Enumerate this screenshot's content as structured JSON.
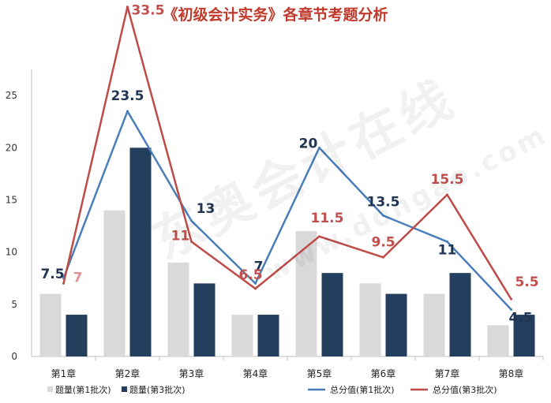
{
  "chart_data": {
    "type": "bar",
    "title": "《初级会计实务》各章节考题分析",
    "categories": [
      "第1章",
      "第2章",
      "第3章",
      "第4章",
      "第5章",
      "第6章",
      "第7章",
      "第8章"
    ],
    "ylim": [
      0,
      30
    ],
    "yticks": [
      0,
      5,
      10,
      15,
      20,
      25
    ],
    "grid": false,
    "legend_position": "bottom",
    "series": [
      {
        "name": "题量(第1批次)",
        "kind": "bar",
        "color": "#d9d9d9",
        "values": [
          6,
          14,
          9,
          4,
          12,
          7,
          6,
          3
        ]
      },
      {
        "name": "题量(第3批次)",
        "kind": "bar",
        "color": "#243f5e",
        "values": [
          4,
          20,
          7,
          4,
          8,
          6,
          8,
          4
        ]
      },
      {
        "name": "总分值(第1批次)",
        "kind": "line",
        "color": "#4a7ebb",
        "values": [
          7.5,
          23.5,
          13,
          7,
          20,
          13.5,
          11,
          4.5
        ],
        "labels": [
          "7.5",
          "23.5",
          "13",
          "7",
          "20",
          "13.5",
          "11",
          "4.5"
        ],
        "label_color": "#1f3552"
      },
      {
        "name": "总分值(第3批次)",
        "kind": "line",
        "color": "#be4b48",
        "values": [
          7,
          33.5,
          11,
          6.5,
          11.5,
          9.5,
          15.5,
          5.5
        ],
        "labels": [
          "7",
          "33.5",
          "11",
          "6.5",
          "11.5",
          "9.5",
          "15.5",
          "5.5"
        ],
        "label_color": "#c0504d"
      }
    ],
    "watermark": "东奥会计在线",
    "watermark_sub": "www.dongao.com"
  }
}
